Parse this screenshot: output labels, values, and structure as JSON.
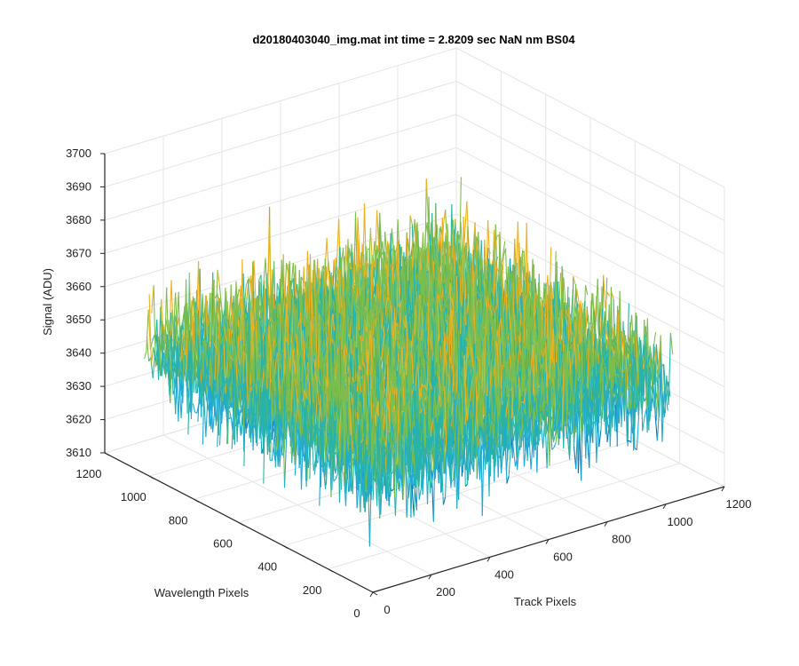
{
  "chart_data": {
    "type": "surface",
    "title": "d20180403040_img.mat int time = 2.8209 sec  NaN nm BS04",
    "xlabel": "Track Pixels",
    "ylabel": "Wavelength Pixels",
    "zlabel": "Signal (ADU)",
    "xlim": [
      0,
      1200
    ],
    "ylim": [
      0,
      1200
    ],
    "zlim": [
      3610,
      3700
    ],
    "x_ticks": [
      "0",
      "200",
      "400",
      "600",
      "800",
      "1000",
      "1200"
    ],
    "y_ticks": [
      "0",
      "200",
      "400",
      "600",
      "800",
      "1000",
      "1200"
    ],
    "z_ticks": [
      "3610",
      "3620",
      "3630",
      "3640",
      "3650",
      "3660",
      "3670",
      "3680",
      "3690",
      "3700"
    ],
    "data_extent": {
      "x": [
        1,
        1024
      ],
      "y": [
        1,
        1024
      ]
    },
    "signal_mean": 3647,
    "signal_range_typical": [
      3625,
      3670
    ],
    "signal_extremes": [
      3618,
      3692
    ],
    "colormap": [
      "#0072BD",
      "#1FA8D6",
      "#29B3A8",
      "#7DBE4C",
      "#EDB120"
    ],
    "grid": true
  }
}
